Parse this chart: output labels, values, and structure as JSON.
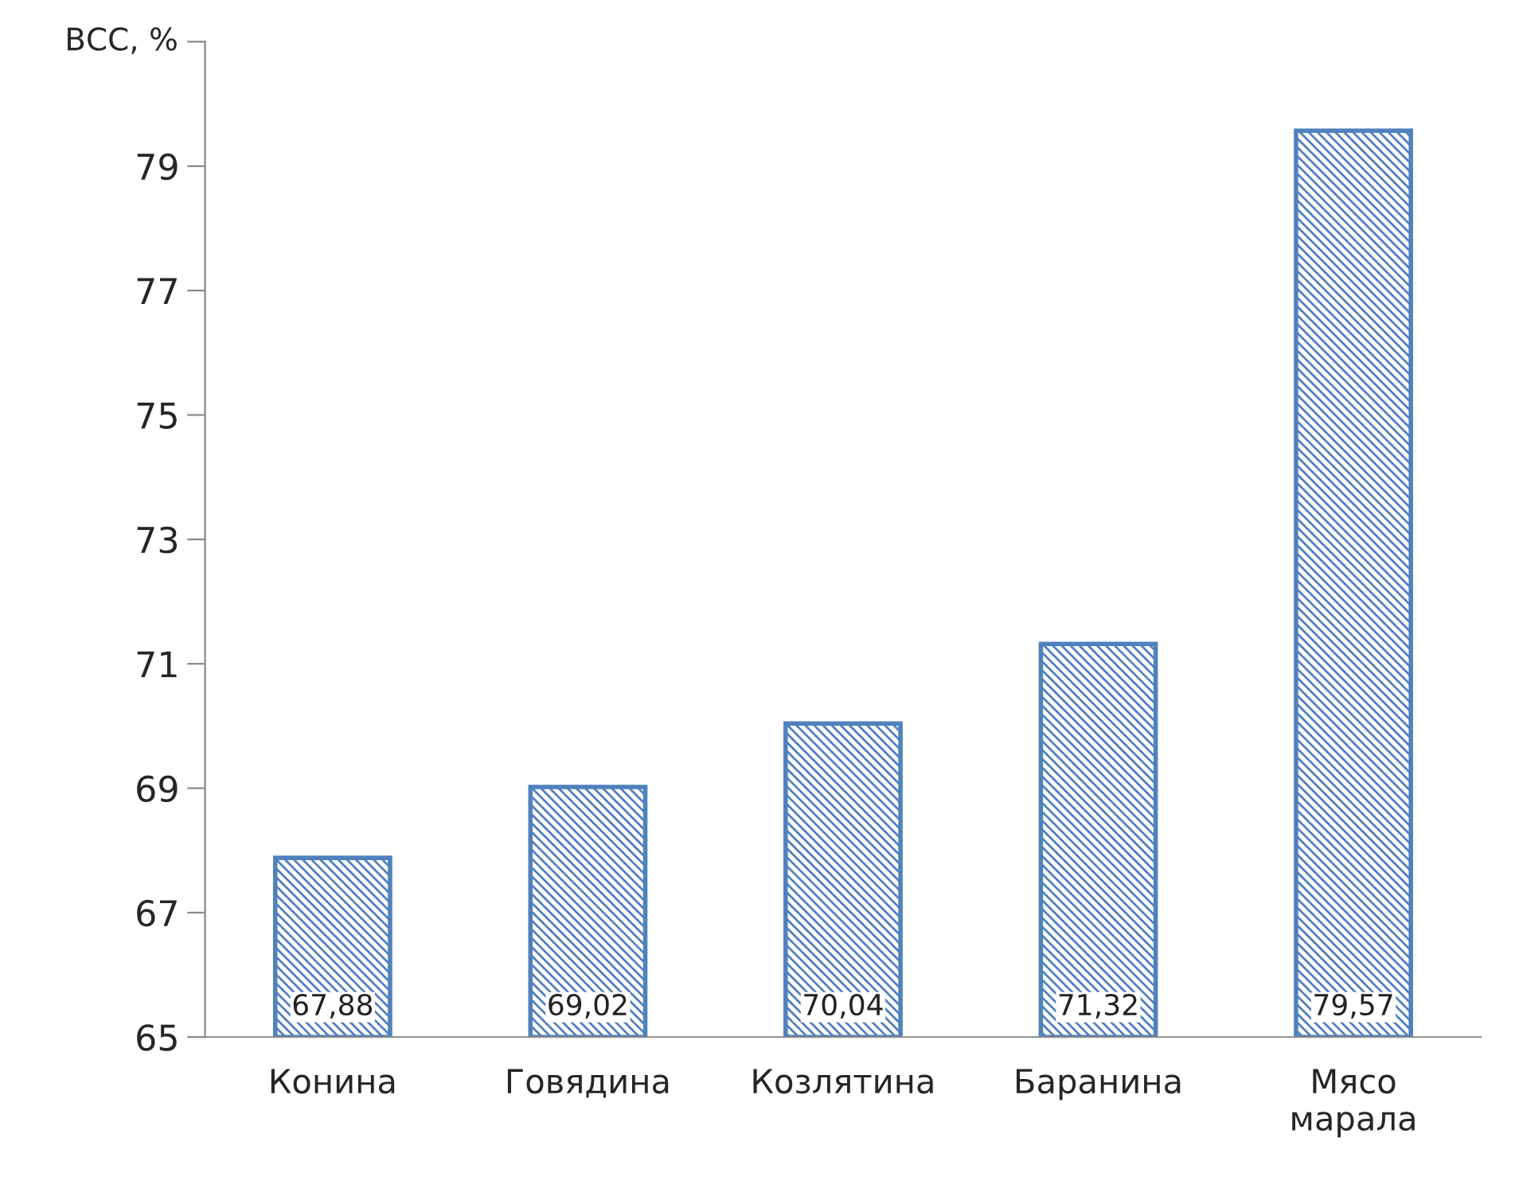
{
  "chart_data": {
    "type": "bar",
    "ylabel": "ВСС, %",
    "categories": [
      "Конина",
      "Говядина",
      "Козлятина",
      "Баранина",
      "Мясо\nмарала"
    ],
    "values": [
      67.88,
      69.02,
      70.04,
      71.32,
      79.57
    ],
    "value_labels": [
      "67,88",
      "69,02",
      "70,04",
      "71,32",
      "79,57"
    ],
    "color": "#4f81bd",
    "ylim": [
      65,
      81
    ],
    "yticks": [
      65,
      67,
      69,
      71,
      73,
      75,
      77,
      79,
      {
        "value": 81,
        "label": null
      }
    ],
    "grid": false,
    "legend": false
  }
}
